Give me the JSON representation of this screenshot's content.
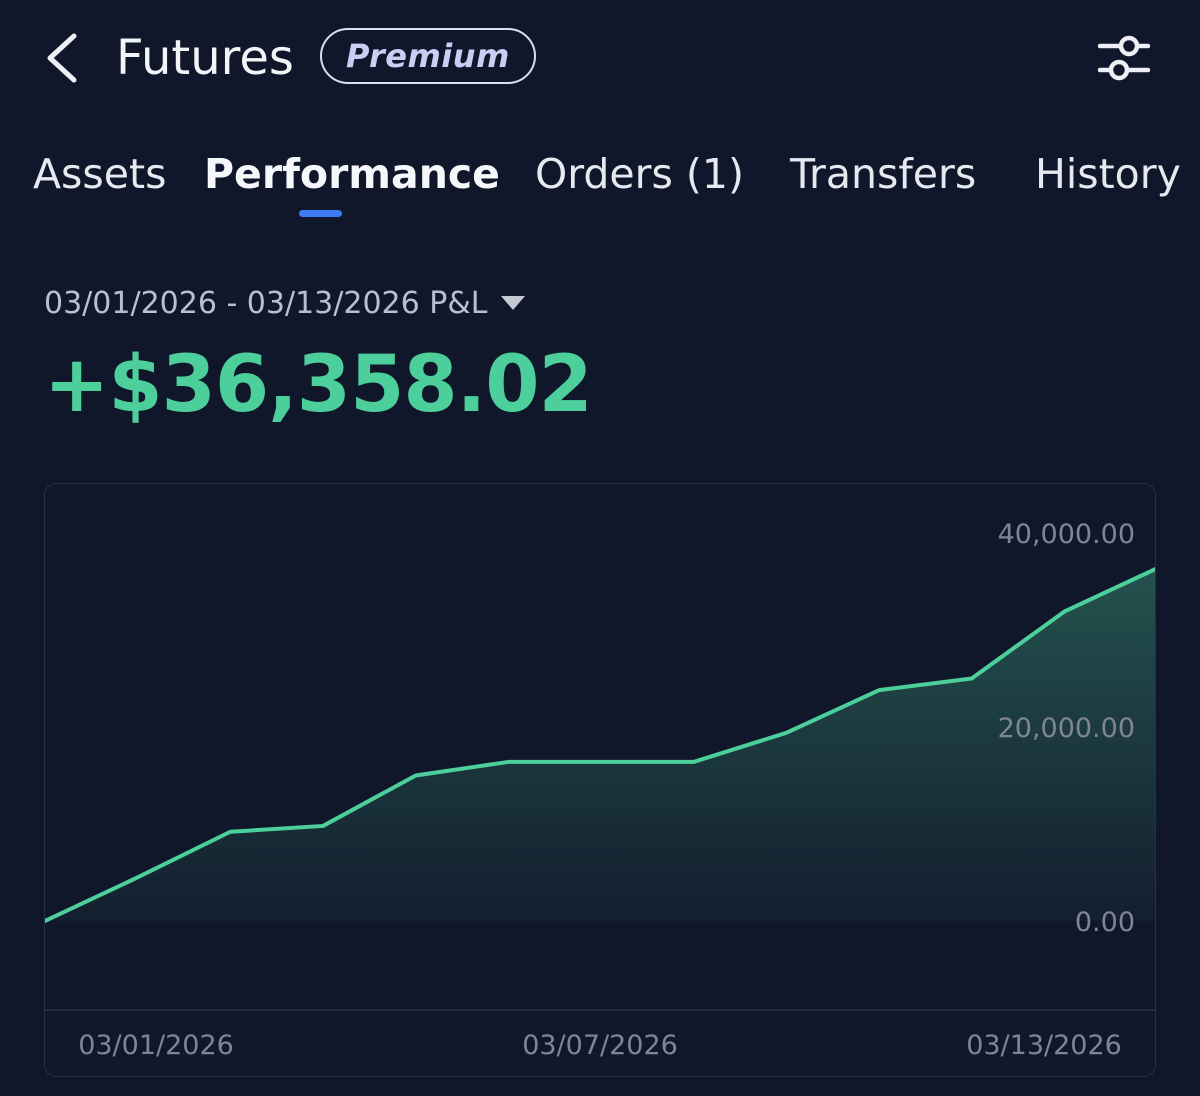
{
  "header": {
    "title": "Futures",
    "badge": "Premium"
  },
  "tabs": [
    {
      "label": "Assets",
      "active": false
    },
    {
      "label": "Performance",
      "active": true
    },
    {
      "label": "Orders (1)",
      "active": false
    },
    {
      "label": "Transfers",
      "active": false
    },
    {
      "label": "History",
      "active": false
    }
  ],
  "summary": {
    "range_label": "03/01/2026 - 03/13/2026 P&L",
    "pnl": "+$36,358.02"
  },
  "colors": {
    "background": "#11172a",
    "accent_green": "#4ccf9b",
    "tab_indicator": "#3d7cf2"
  },
  "icons": {
    "back": "chevron-left-icon",
    "filter": "sliders-icon",
    "range_dropdown": "caret-down-icon"
  },
  "chart_data": {
    "type": "area",
    "x": [
      "03/01/2026",
      "03/02/2026",
      "03/03/2026",
      "03/04/2026",
      "03/05/2026",
      "03/06/2026",
      "03/07/2026",
      "03/08/2026",
      "03/09/2026",
      "03/10/2026",
      "03/11/2026",
      "03/12/2026",
      "03/13/2026"
    ],
    "series": [
      {
        "values": [
          0,
          4500,
          9200,
          9800,
          15000,
          16400,
          16400,
          16400,
          19400,
          23800,
          25000,
          31900,
          36358.02
        ]
      }
    ],
    "ylim": [
      -9000,
      40000
    ],
    "y_ticks": [
      0,
      20000,
      40000
    ],
    "y_tick_labels": [
      "0.00",
      "20,000.00",
      "40,000.00"
    ],
    "x_tick_labels": [
      "03/01/2026",
      "03/07/2026",
      "03/13/2026"
    ],
    "x_tick_index": [
      0,
      6,
      12
    ],
    "title": "",
    "xlabel": "",
    "ylabel": "",
    "grid": false,
    "line_color": "#4ccf9b"
  }
}
